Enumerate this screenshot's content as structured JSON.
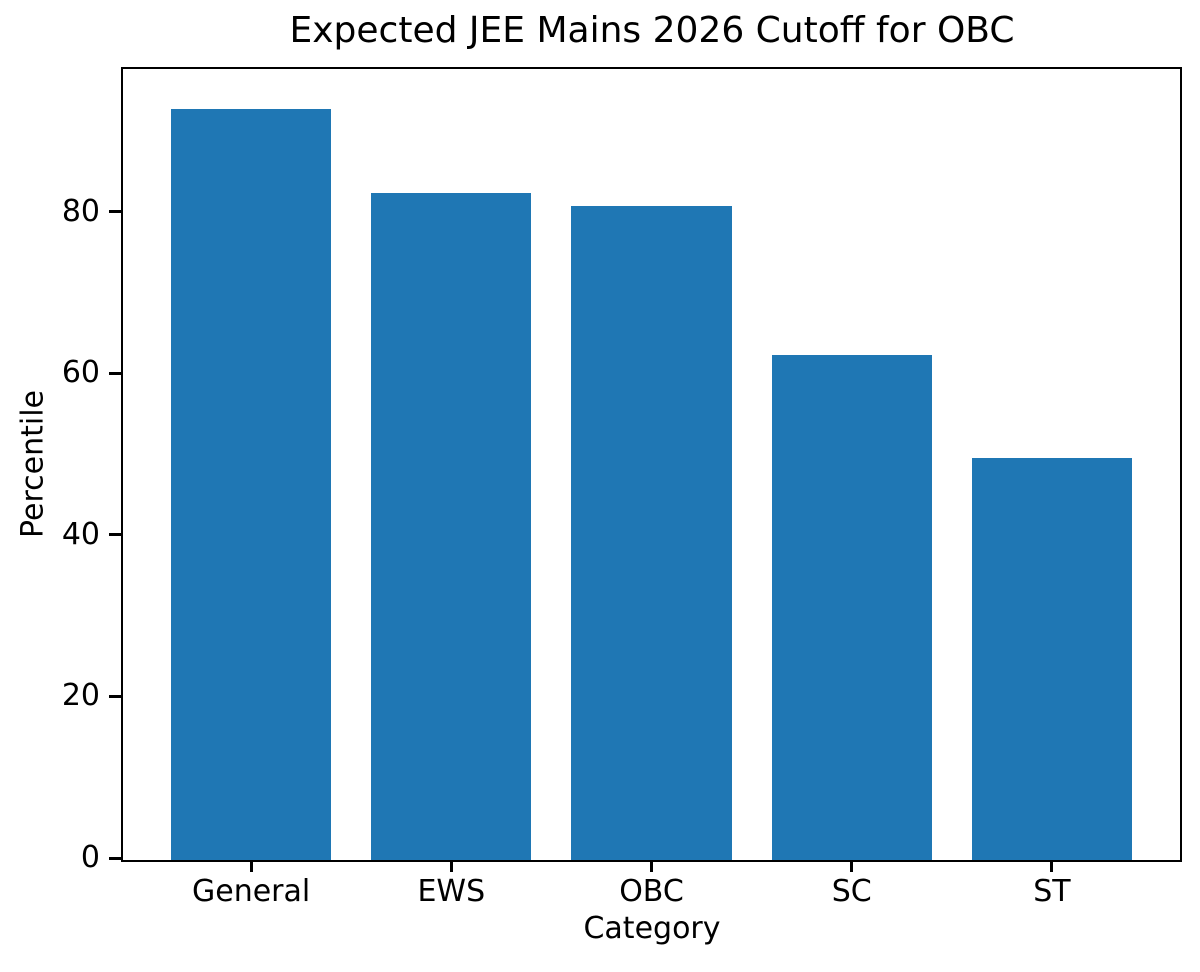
{
  "chart_data": {
    "type": "bar",
    "title": "Expected JEE Mains 2026 Cutoff for OBC",
    "xlabel": "Category",
    "ylabel": "Percentile",
    "categories": [
      "General",
      "EWS",
      "OBC",
      "SC",
      "ST"
    ],
    "values": [
      93,
      82.5,
      81,
      62.5,
      49.8
    ],
    "yticks": [
      0,
      20,
      40,
      60,
      80
    ],
    "ylim": [
      0,
      97.9
    ],
    "bar_width_fraction": 0.8,
    "bar_color": "#1f77b4",
    "axis_color": "#000000",
    "text_color": "#000000",
    "background_color": "#ffffff",
    "grid": false,
    "legend": "none"
  }
}
